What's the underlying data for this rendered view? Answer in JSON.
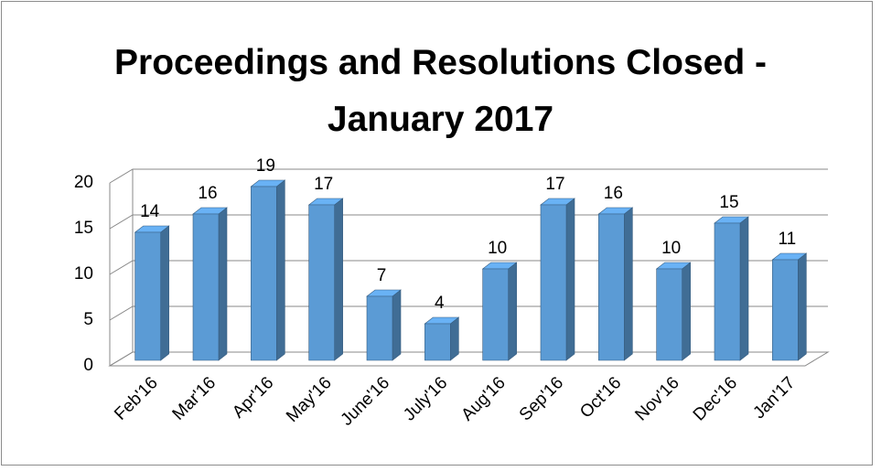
{
  "chart_data": {
    "type": "bar3d",
    "title": "Proceedings and Resolutions Closed - January 2017",
    "categories": [
      "Feb'16",
      "Mar'16",
      "Apr'16",
      "May'16",
      "June'16",
      "July'16",
      "Aug'16",
      "Sep'16",
      "Oct'16",
      "Nov'16",
      "Dec'16",
      "Jan'17"
    ],
    "values": [
      14,
      16,
      19,
      17,
      7,
      4,
      10,
      17,
      16,
      10,
      15,
      11
    ],
    "color": "#5b9bd5",
    "ylim": [
      0,
      20
    ],
    "yticks": [
      0,
      5,
      10,
      15,
      20
    ],
    "grid": true
  }
}
